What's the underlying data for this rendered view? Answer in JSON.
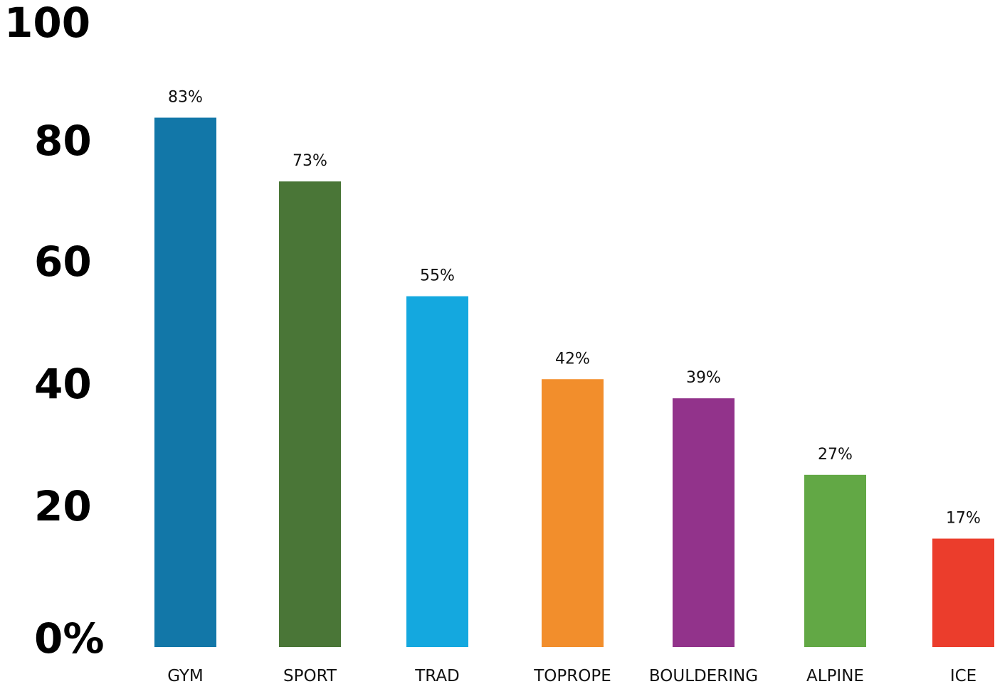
{
  "chart_data": {
    "type": "bar",
    "title": "",
    "xlabel": "",
    "ylabel": "",
    "ylim": [
      0,
      100
    ],
    "grid": false,
    "legend": "none",
    "y_ticks": [
      {
        "value": 0,
        "label": "0%"
      },
      {
        "value": 20,
        "label": "20"
      },
      {
        "value": 40,
        "label": "40"
      },
      {
        "value": 60,
        "label": "60"
      },
      {
        "value": 80,
        "label": "80"
      },
      {
        "value": 100,
        "label": "100"
      }
    ],
    "categories": [
      "GYM",
      "SPORT",
      "TRAD",
      "TOPROPE",
      "BOULDERING",
      "ALPINE",
      "ICE"
    ],
    "values": [
      83,
      73,
      55,
      42,
      39,
      27,
      17
    ],
    "data_labels": [
      "83%",
      "73%",
      "55%",
      "42%",
      "39%",
      "27%",
      "17%"
    ],
    "colors": [
      "#1277A8",
      "#4A7637",
      "#14A8DF",
      "#F28E2C",
      "#92338B",
      "#62A845",
      "#EB3D2C"
    ]
  }
}
